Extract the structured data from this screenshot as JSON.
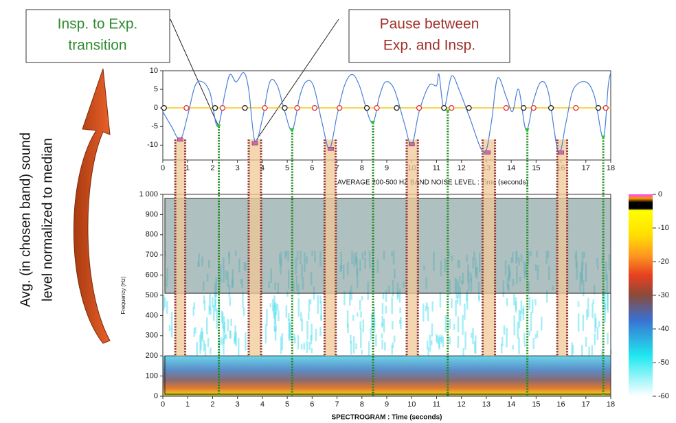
{
  "chart_data": [
    {
      "type": "line",
      "ylabel": [
        "Avg. (in chosen band) sound",
        "level normalized to median"
      ],
      "xlabel": "AVERAGE 200-500 HZ BAND NOISE LEVEL : Time (seconds)",
      "annotations": [
        {
          "lines": [
            "Insp. to Exp.",
            "transition"
          ],
          "color": "#2e8b2e"
        },
        {
          "lines": [
            "Pause between",
            "Exp. and Insp."
          ],
          "color": "#a0302a"
        }
      ],
      "xlim": [
        0,
        18
      ],
      "xticks": [
        0,
        1,
        2,
        3,
        4,
        5,
        6,
        7,
        8,
        9,
        10,
        11,
        12,
        13,
        14,
        15,
        16,
        17,
        18
      ],
      "ylim": [
        -14,
        10
      ],
      "yticks": [
        10,
        5,
        0,
        -5,
        -10
      ],
      "reference_line": {
        "value": 0,
        "color": "#f2c200"
      },
      "series": [
        {
          "style": "line",
          "color": "#4a7fd8",
          "x": [
            0,
            0.35,
            0.7,
            1.0,
            1.3,
            1.6,
            1.9,
            2.2,
            2.5,
            2.7,
            2.95,
            3.25,
            3.45,
            3.7,
            4.0,
            4.3,
            4.6,
            4.9,
            5.2,
            5.5,
            5.75,
            6.05,
            6.4,
            6.7,
            7.0,
            7.3,
            7.6,
            7.9,
            8.4,
            8.7,
            8.95,
            9.3,
            9.7,
            10.0,
            10.3,
            10.7,
            11.0,
            11.1,
            11.3,
            11.6,
            11.9,
            12.3,
            12.9,
            13.2,
            13.45,
            13.8,
            14.05,
            14.3,
            14.6,
            14.9,
            15.2,
            15.5,
            15.9,
            16.2,
            16.5,
            17.0,
            17.35,
            17.7,
            17.9,
            18
          ],
          "values": [
            -1,
            -5,
            -8.5,
            -2,
            6,
            7,
            4,
            -5,
            4,
            9,
            7,
            9.5,
            5,
            -9,
            -3,
            7,
            6,
            -1,
            -6,
            3,
            7,
            6,
            -4,
            -11,
            -2,
            6,
            9,
            6,
            -4,
            3,
            7,
            5,
            -4,
            -10,
            -1,
            6,
            6,
            9,
            0,
            8.5,
            5,
            -2,
            -12,
            -4,
            8,
            3,
            -1,
            5,
            -6,
            2,
            7,
            4,
            -12,
            -4,
            5,
            7,
            3,
            -8,
            6,
            9.5
          ]
        },
        {
          "style": "circle",
          "color": "#222222",
          "x": [
            0.05,
            2.1,
            3.3,
            4.9,
            8.2,
            9.4,
            11.3,
            12.3,
            14.5,
            15.6,
            17.5
          ],
          "values": [
            0,
            0,
            0,
            0,
            0,
            0,
            0,
            0,
            0,
            0,
            0
          ]
        },
        {
          "style": "circle",
          "color": "#e03030",
          "x": [
            0.95,
            2.4,
            4.1,
            5.4,
            6.1,
            7.1,
            8.6,
            10.3,
            11.6,
            13.8,
            14.9,
            16.6,
            17.8
          ],
          "values": [
            0,
            0,
            0,
            0,
            0,
            0,
            0,
            0,
            0,
            0,
            0,
            0,
            0
          ]
        },
        {
          "style": "triangle",
          "color": "#22cc22",
          "x": [
            2.25,
            5.2,
            8.45,
            11.45,
            14.65,
            17.7
          ],
          "values": [
            -5,
            -6,
            -4,
            -1,
            -6,
            -8
          ]
        },
        {
          "style": "square",
          "color": "#e060b0",
          "x": [
            0.7,
            3.7,
            6.75,
            10.0,
            13.05,
            16.0
          ],
          "values": [
            -8.5,
            -9.5,
            -11,
            -9.8,
            -12,
            -12
          ]
        }
      ],
      "pause_intervals": [
        [
          0.5,
          0.9
        ],
        [
          3.45,
          3.95
        ],
        [
          6.5,
          6.95
        ],
        [
          9.8,
          10.25
        ],
        [
          12.85,
          13.35
        ],
        [
          15.85,
          16.25
        ]
      ]
    },
    {
      "type": "spectrogram",
      "xlabel": "SPECTROGRAM : Time (seconds)",
      "ylabel": "Frequency (Hz)",
      "xlim": [
        0,
        18
      ],
      "xticks": [
        0,
        1,
        2,
        3,
        4,
        5,
        6,
        7,
        8,
        9,
        10,
        11,
        12,
        13,
        14,
        15,
        16,
        17,
        18
      ],
      "ylim": [
        0,
        1000
      ],
      "yticks": [
        0,
        100,
        200,
        300,
        400,
        500,
        600,
        700,
        800,
        900,
        {
          "value": 1000,
          "label": "1 000"
        }
      ],
      "regions": [
        [
          510,
          980
        ],
        [
          0,
          200
        ]
      ],
      "colorbar": {
        "lim": [
          -60,
          0
        ],
        "ticks": [
          0,
          -10,
          -20,
          -30,
          -40,
          -50,
          -60
        ]
      }
    }
  ]
}
